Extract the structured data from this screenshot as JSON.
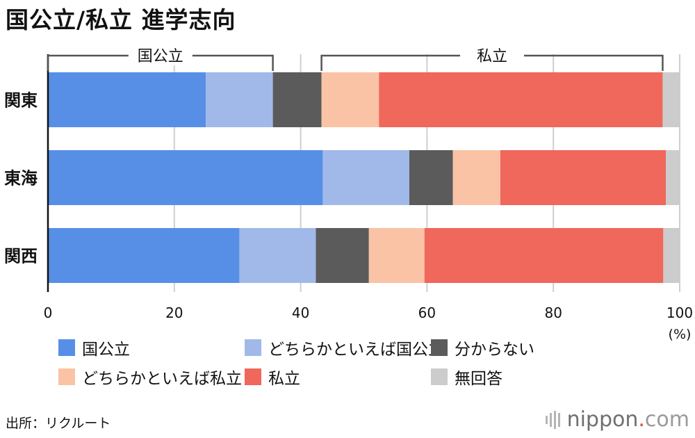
{
  "title": "国公立/私立 進学志向",
  "chart_data": {
    "type": "bar",
    "orientation": "horizontal",
    "stacked": true,
    "title": "国公立/私立 進学志向",
    "categories": [
      "関東",
      "東海",
      "関西"
    ],
    "series": [
      {
        "name": "国公立",
        "color": "#578fe6",
        "values": [
          25.0,
          43.5,
          30.3
        ]
      },
      {
        "name": "どちらかといえば国公立",
        "color": "#a1b9e8",
        "values": [
          10.6,
          13.7,
          12.1
        ]
      },
      {
        "name": "分からない",
        "color": "#5b5b5b",
        "values": [
          7.7,
          6.9,
          8.4
        ]
      },
      {
        "name": "どちらかといえば私立",
        "color": "#fac3a6",
        "values": [
          9.1,
          7.5,
          8.8
        ]
      },
      {
        "name": "私立",
        "color": "#f0675b",
        "values": [
          44.9,
          26.2,
          37.8
        ]
      },
      {
        "name": "無回答",
        "color": "#cccccc",
        "values": [
          2.7,
          2.2,
          2.6
        ]
      }
    ],
    "xlim": [
      0,
      100
    ],
    "xticks": [
      0,
      20,
      40,
      60,
      80,
      100
    ],
    "xtick_labels": [
      "0",
      "20",
      "40",
      "60",
      "80",
      "100"
    ],
    "unit_label": "(%)",
    "grid": true,
    "brackets": [
      {
        "label": "国公立",
        "from": 0,
        "to": 35.6
      },
      {
        "label": "私立",
        "from": 43.3,
        "to": 97.3
      }
    ]
  },
  "legend": [
    {
      "label": "国公立",
      "color": "#578fe6"
    },
    {
      "label": "どちらかといえば国公立",
      "color": "#a1b9e8"
    },
    {
      "label": "分からない",
      "color": "#5b5b5b"
    },
    {
      "label": "どちらかといえば私立",
      "color": "#fac3a6"
    },
    {
      "label": "私立",
      "color": "#f0675b"
    },
    {
      "label": "無回答",
      "color": "#cccccc"
    }
  ],
  "source": "出所：リクルート",
  "brand": {
    "name": "nippon",
    "dot": ".",
    "suffix": "com"
  }
}
